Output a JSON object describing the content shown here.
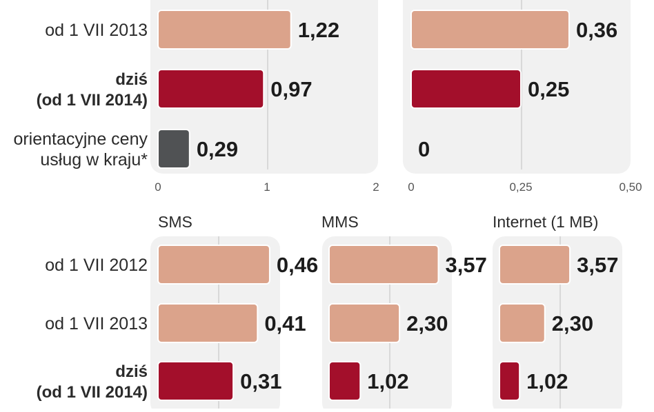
{
  "colors": {
    "previous": "#dba38b",
    "current": "#a30f2b",
    "domestic": "#505254",
    "panel_bg": "#f1f1f1",
    "gridline": "#c9c9c9"
  },
  "chart_data": [
    {
      "type": "bar",
      "orientation": "horizontal",
      "title": "",
      "categories": [
        "od 1 VII 2013",
        "dziś (od 1 VII 2014)",
        "orientacyjne ceny usług w kraju*"
      ],
      "category_lines": [
        [
          "od 1 VII 2013"
        ],
        [
          "dziś",
          "(od 1 VII 2014)"
        ],
        [
          "orientacyjne ceny",
          "usług w kraju*"
        ]
      ],
      "values": [
        1.22,
        0.97,
        0.29
      ],
      "value_labels": [
        "1,22",
        "0,97",
        "0,29"
      ],
      "bar_styles": [
        "previous",
        "current",
        "domestic"
      ],
      "xlim": [
        0,
        2
      ],
      "xticks": [
        0,
        1,
        2
      ],
      "xtick_labels": [
        "0",
        "1",
        "2"
      ]
    },
    {
      "type": "bar",
      "orientation": "horizontal",
      "title": "",
      "categories": [
        "od 1 VII 2013",
        "dziś (od 1 VII 2014)",
        "orientacyjne ceny usług w kraju*"
      ],
      "values": [
        0.36,
        0.25,
        0
      ],
      "value_labels": [
        "0,36",
        "0,25",
        "0"
      ],
      "bar_styles": [
        "previous",
        "current",
        "domestic"
      ],
      "xlim": [
        0,
        0.5
      ],
      "xticks": [
        0,
        0.25,
        0.5
      ],
      "xtick_labels": [
        "0",
        "0,25",
        "0,50"
      ]
    },
    {
      "type": "bar",
      "orientation": "horizontal",
      "title": "SMS",
      "categories": [
        "od 1 VII 2012",
        "od 1 VII 2013",
        "dziś (od 1 VII 2014)"
      ],
      "category_lines": [
        [
          "od 1 VII 2012"
        ],
        [
          "od 1 VII 2013"
        ],
        [
          "dziś",
          "(od 1 VII 2014)"
        ]
      ],
      "values": [
        0.46,
        0.41,
        0.31
      ],
      "value_labels": [
        "0,46",
        "0,41",
        "0,31"
      ],
      "bar_styles": [
        "previous",
        "previous",
        "current"
      ],
      "xlim": [
        0,
        0.5
      ]
    },
    {
      "type": "bar",
      "orientation": "horizontal",
      "title": "MMS",
      "categories": [
        "od 1 VII 2012",
        "od 1 VII 2013",
        "dziś (od 1 VII 2014)"
      ],
      "values": [
        3.57,
        2.3,
        1.02
      ],
      "value_labels": [
        "3,57",
        "2,30",
        "1,02"
      ],
      "bar_styles": [
        "previous",
        "previous",
        "current"
      ],
      "xlim": [
        0,
        4
      ]
    },
    {
      "type": "bar",
      "orientation": "horizontal",
      "title": "Internet (1 MB)",
      "categories": [
        "od 1 VII 2012",
        "od 1 VII 2013",
        "dziś (od 1 VII 2014)"
      ],
      "values": [
        3.57,
        2.3,
        1.02
      ],
      "value_labels": [
        "3,57",
        "2,30",
        "1,02"
      ],
      "bar_styles": [
        "previous",
        "previous",
        "current"
      ],
      "xlim": [
        0,
        4
      ]
    }
  ]
}
